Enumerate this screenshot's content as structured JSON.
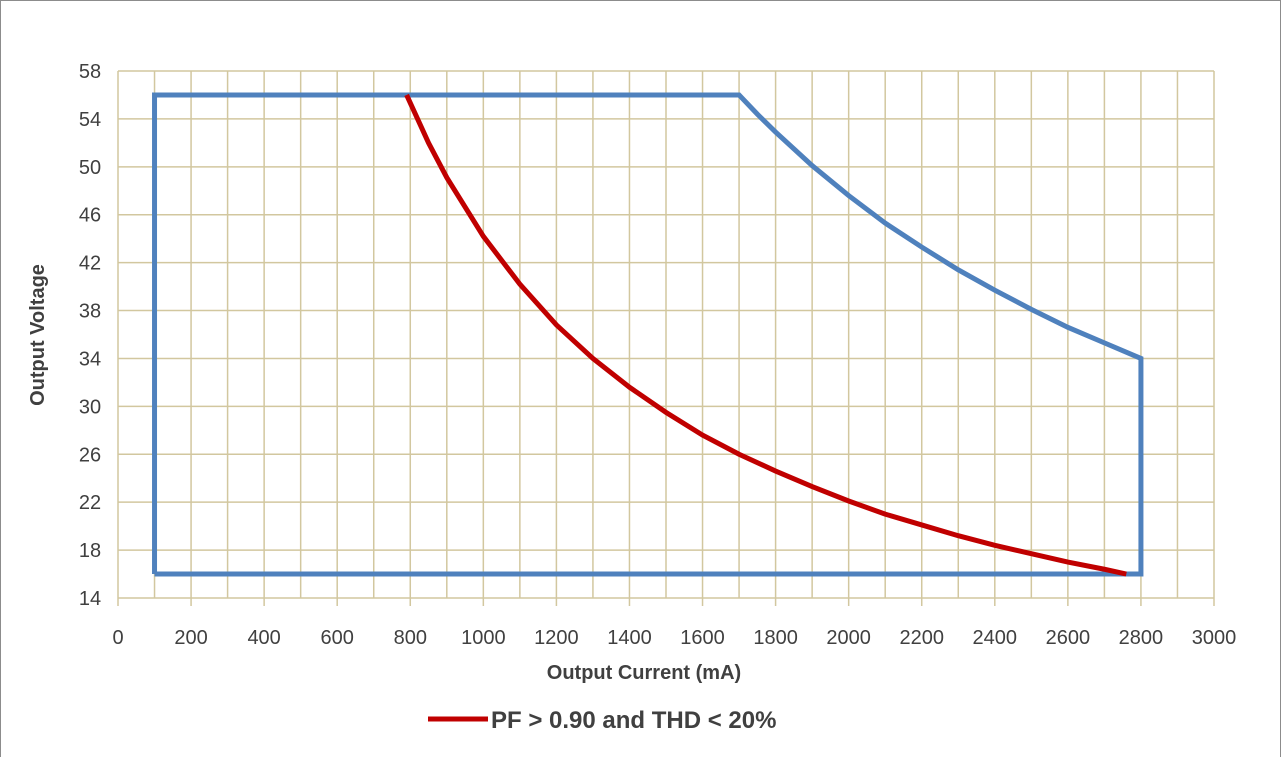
{
  "chart_data": {
    "type": "line",
    "title": "",
    "xlabel": "Output Current (mA)",
    "ylabel": "Output Voltage",
    "xlim": [
      0,
      3000
    ],
    "ylim": [
      14,
      58
    ],
    "x_ticks": [
      0,
      200,
      400,
      600,
      800,
      1000,
      1200,
      1400,
      1600,
      1800,
      2000,
      2200,
      2400,
      2600,
      2800,
      3000
    ],
    "y_ticks": [
      14,
      18,
      22,
      26,
      30,
      34,
      38,
      42,
      46,
      50,
      54,
      58
    ],
    "x_tick_labels": [
      "0",
      "200",
      "400",
      "600",
      "800",
      "1000",
      "1200",
      "1400",
      "1600",
      "1800",
      "2000",
      "2200",
      "2400",
      "2600",
      "2800",
      "3000"
    ],
    "y_tick_labels": [
      "14",
      "18",
      "22",
      "26",
      "30",
      "34",
      "38",
      "42",
      "46",
      "50",
      "54",
      "58"
    ],
    "x_minor_step": 100,
    "y_grid_step": 4,
    "grid": true,
    "legend_position": "bottom",
    "series": [
      {
        "color": "#4f81bd",
        "points": [
          [
            100,
            16
          ],
          [
            100,
            56
          ],
          [
            1700,
            56
          ],
          [
            1750,
            54.4
          ],
          [
            1800,
            52.9
          ],
          [
            1900,
            50.1
          ],
          [
            2000,
            47.6
          ],
          [
            2100,
            45.3
          ],
          [
            2200,
            43.3
          ],
          [
            2300,
            41.4
          ],
          [
            2400,
            39.7
          ],
          [
            2500,
            38.1
          ],
          [
            2600,
            36.6
          ],
          [
            2700,
            35.3
          ],
          [
            2800,
            34
          ],
          [
            2800,
            16
          ],
          [
            100,
            16
          ]
        ]
      },
      {
        "name": "PF > 0.90 and THD < 20%",
        "color": "#c00000",
        "points": [
          [
            790,
            56
          ],
          [
            850,
            52
          ],
          [
            900,
            49.1
          ],
          [
            1000,
            44.2
          ],
          [
            1100,
            40.2
          ],
          [
            1200,
            36.8
          ],
          [
            1300,
            34
          ],
          [
            1400,
            31.6
          ],
          [
            1500,
            29.5
          ],
          [
            1600,
            27.6
          ],
          [
            1700,
            26
          ],
          [
            1800,
            24.6
          ],
          [
            1900,
            23.3
          ],
          [
            2000,
            22.1
          ],
          [
            2100,
            21
          ],
          [
            2200,
            20.1
          ],
          [
            2300,
            19.2
          ],
          [
            2400,
            18.4
          ],
          [
            2500,
            17.7
          ],
          [
            2600,
            17
          ],
          [
            2700,
            16.4
          ],
          [
            2760,
            16
          ]
        ]
      }
    ]
  }
}
